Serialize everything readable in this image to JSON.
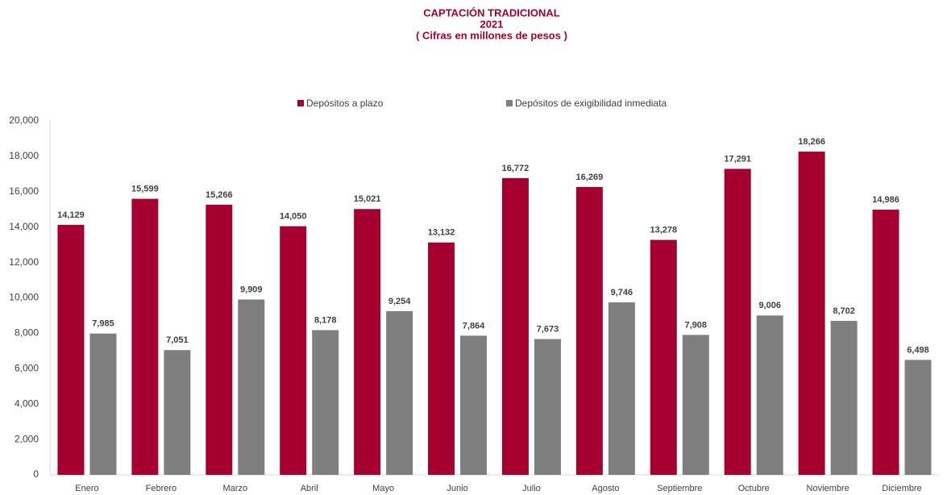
{
  "chart_data": {
    "type": "bar",
    "title": "CAPTACIÓN TRADICIONAL",
    "subtitle": "2021",
    "units_label": "( Cifras en millones de pesos )",
    "categories": [
      "Enero",
      "Febrero",
      "Marzo",
      "Abril",
      "Mayo",
      "Junio",
      "Julio",
      "Agosto",
      "Septiembre",
      "Octubre",
      "Noviembre",
      "Diciembre"
    ],
    "series": [
      {
        "name": "Depósitos a plazo",
        "color": "#a5002f",
        "values": [
          14129,
          15599,
          15266,
          14050,
          15021,
          13132,
          16772,
          16269,
          13278,
          17291,
          18266,
          14986
        ],
        "value_labels": [
          "14,129",
          "15,599",
          "15,266",
          "14,050",
          "15,021",
          "13,132",
          "16,772",
          "16,269",
          "13,278",
          "17,291",
          "18,266",
          "14,986"
        ]
      },
      {
        "name": "Depósitos de exigibilidad inmediata",
        "color": "#7f7f7f",
        "values": [
          7985,
          7051,
          9909,
          8178,
          9254,
          7864,
          7673,
          9746,
          7908,
          9006,
          8702,
          6498
        ],
        "value_labels": [
          "7,985",
          "7,051",
          "9,909",
          "8,178",
          "9,254",
          "7,864",
          "7,673",
          "9,746",
          "7,908",
          "9,006",
          "8,702",
          "6,498"
        ]
      }
    ],
    "ylim": [
      0,
      20000
    ],
    "yticks": [
      0,
      {
        "value": 2000,
        "label": "2,000"
      },
      {
        "value": 4000,
        "label": "4,000"
      },
      {
        "value": 6000,
        "label": "6,000"
      },
      {
        "value": 8000,
        "label": "8,000"
      },
      {
        "value": 10000,
        "label": "10,000"
      },
      {
        "value": 12000,
        "label": "12,000"
      },
      {
        "value": 14000,
        "label": "14,000"
      },
      {
        "value": 16000,
        "label": "16,000"
      },
      {
        "value": 18000,
        "label": "18,000"
      },
      {
        "value": 20000,
        "label": "20,000"
      }
    ],
    "grid": false,
    "legend": "top"
  }
}
